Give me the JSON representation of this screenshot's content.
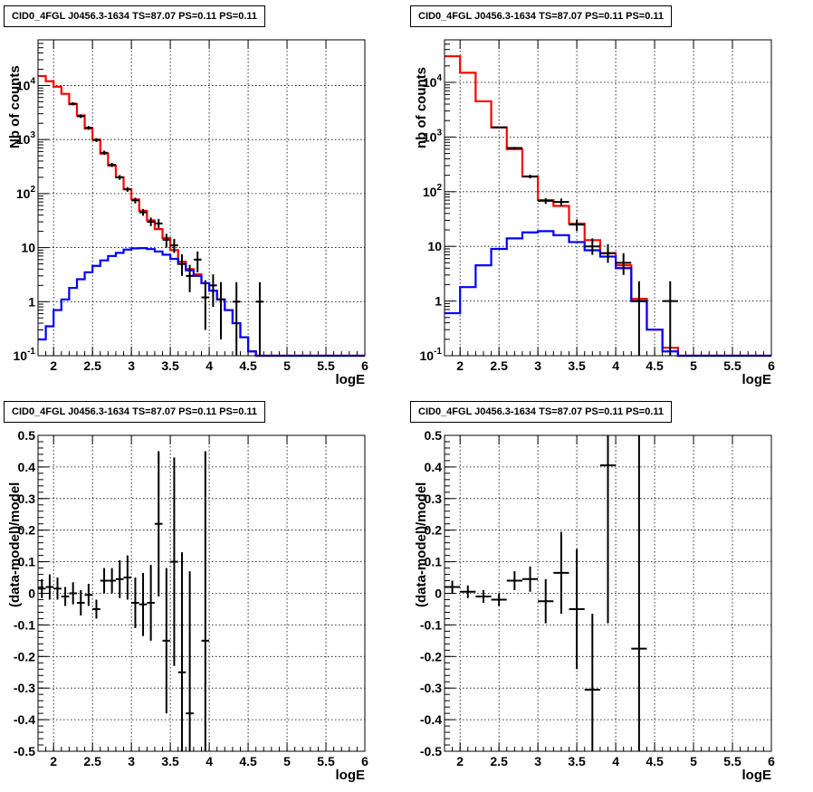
{
  "chart_data": [
    {
      "type": "histogram",
      "title": "CID0_4FGL J0456.3-1634 TS=87.07 PS=0.11 PS=0.11",
      "xlabel": "logE",
      "ylabel": "Nb of counts",
      "xlim": [
        1.8,
        6.0
      ],
      "ylim": [
        0.1,
        70000
      ],
      "yscale": "log",
      "grid": true,
      "x_ticks": [
        "2",
        "2.5",
        "3",
        "3.5",
        "4",
        "4.5",
        "5",
        "5.5",
        "6"
      ],
      "y_ticks": [
        "10^{-1}",
        "1",
        "10",
        "10^{2}",
        "10^{3}",
        "10^{4}"
      ],
      "bin_width": 0.1,
      "series": [
        {
          "style": "step",
          "color": "#ff0000",
          "x": [
            1.85,
            1.95,
            2.05,
            2.15,
            2.25,
            2.35,
            2.45,
            2.55,
            2.65,
            2.75,
            2.85,
            2.95,
            3.05,
            3.15,
            3.25,
            3.35,
            3.45,
            3.55,
            3.65,
            3.75,
            3.85,
            3.95,
            4.05,
            4.15,
            4.25,
            4.35,
            4.45,
            4.55,
            4.65,
            4.75,
            4.85,
            4.95,
            5.05,
            5.15,
            5.25,
            5.35,
            5.45,
            5.55,
            5.65,
            5.75,
            5.85,
            5.95
          ],
          "values": [
            15000,
            12000,
            9500,
            7000,
            4500,
            2800,
            1600,
            1000,
            550,
            330,
            200,
            120,
            78,
            48,
            32,
            22,
            15,
            9,
            5.5,
            4,
            3.2,
            2.2,
            1.6,
            1.1,
            0.7,
            0.4,
            0.22,
            0.12,
            0.1,
            0.1,
            0.1,
            0.1,
            0.1,
            0.1,
            0.1,
            0.1,
            0.1,
            0.1,
            0.1,
            0.1,
            0.1,
            0.1
          ]
        },
        {
          "style": "step",
          "color": "#0000ff",
          "x": [
            1.85,
            1.95,
            2.05,
            2.15,
            2.25,
            2.35,
            2.45,
            2.55,
            2.65,
            2.75,
            2.85,
            2.95,
            3.05,
            3.15,
            3.25,
            3.35,
            3.45,
            3.55,
            3.65,
            3.75,
            3.85,
            3.95,
            4.05,
            4.15,
            4.25,
            4.35,
            4.45,
            4.55,
            4.65,
            4.75,
            4.85,
            4.95,
            5.05,
            5.15,
            5.25,
            5.35,
            5.45,
            5.55,
            5.65,
            5.75,
            5.85,
            5.95
          ],
          "values": [
            0.2,
            0.35,
            0.7,
            1.1,
            1.8,
            2.6,
            3.5,
            4.6,
            5.8,
            7,
            8,
            9.2,
            9.7,
            9.8,
            9.4,
            8.5,
            7.4,
            6.2,
            5,
            3.8,
            3,
            2.2,
            1.6,
            1.1,
            0.7,
            0.4,
            0.22,
            0.12,
            0.1,
            0.1,
            0.1,
            0.1,
            0.1,
            0.1,
            0.1,
            0.1,
            0.1,
            0.1,
            0.1,
            0.1,
            0.1,
            0.1
          ]
        },
        {
          "style": "errorbar",
          "color": "#000000",
          "x": [
            2.25,
            2.35,
            2.45,
            2.55,
            2.65,
            2.75,
            2.85,
            2.95,
            3.05,
            3.15,
            3.25,
            3.35,
            3.45,
            3.55,
            3.65,
            3.75,
            3.85,
            3.95,
            4.05,
            4.15,
            4.35,
            4.65
          ],
          "values": [
            4600,
            2700,
            1650,
            980,
            570,
            340,
            200,
            120,
            75,
            45,
            30,
            28,
            14,
            11,
            5,
            3,
            6,
            1.2,
            2,
            1.1,
            1,
            1
          ],
          "yerr_lo": [
            4300,
            2500,
            1520,
            900,
            520,
            310,
            180,
            108,
            66,
            39,
            25,
            23,
            10,
            8,
            3,
            1.5,
            3.5,
            0.3,
            0.8,
            0.2,
            0.1,
            0.1
          ],
          "yerr_hi": [
            4900,
            2900,
            1780,
            1060,
            620,
            370,
            220,
            132,
            84,
            52,
            36,
            34,
            18,
            14.5,
            7.5,
            4.8,
            8.5,
            2.5,
            3.2,
            2.3,
            2.3,
            2.3
          ]
        }
      ]
    },
    {
      "type": "histogram",
      "title": "CID0_4FGL J0456.3-1634 TS=87.07 PS=0.11 PS=0.11",
      "xlabel": "logE",
      "ylabel": "nb of counts",
      "xlim": [
        1.8,
        6.0
      ],
      "ylim": [
        0.1,
        60000
      ],
      "yscale": "log",
      "grid": true,
      "x_ticks": [
        "2",
        "2.5",
        "3",
        "3.5",
        "4",
        "4.5",
        "5",
        "5.5",
        "6"
      ],
      "y_ticks": [
        "10^{-1}",
        "1",
        "10",
        "10^{2}",
        "10^{3}",
        "10^{4}"
      ],
      "bin_width": 0.2,
      "series": [
        {
          "style": "step",
          "color": "#ff0000",
          "x": [
            1.9,
            2.1,
            2.3,
            2.5,
            2.7,
            2.9,
            3.1,
            3.3,
            3.5,
            3.7,
            3.9,
            4.1,
            4.3,
            4.5,
            4.7,
            4.9,
            5.1,
            5.3,
            5.5,
            5.7,
            5.9
          ],
          "values": [
            30000,
            15000,
            4500,
            1500,
            600,
            190,
            70,
            55,
            26,
            13,
            7.5,
            4.5,
            1.1,
            0.3,
            0.14,
            0.1,
            0.1,
            0.1,
            0.1,
            0.1,
            0.1
          ]
        },
        {
          "style": "step",
          "color": "#0000ff",
          "x": [
            1.9,
            2.1,
            2.3,
            2.5,
            2.7,
            2.9,
            3.1,
            3.3,
            3.5,
            3.7,
            3.9,
            4.1,
            4.3,
            4.5,
            4.7,
            4.9,
            5.1,
            5.3,
            5.5,
            5.7,
            5.9
          ],
          "values": [
            0.6,
            1.8,
            4.5,
            9,
            14,
            18,
            19,
            16,
            12,
            8.5,
            6.5,
            4,
            1,
            0.3,
            0.12,
            0.1,
            0.1,
            0.1,
            0.1,
            0.1,
            0.1
          ]
        },
        {
          "style": "errorbar",
          "color": "#000000",
          "x": [
            2.5,
            2.7,
            2.9,
            3.1,
            3.3,
            3.5,
            3.7,
            3.9,
            4.1,
            4.3,
            4.7
          ],
          "values": [
            1500,
            630,
            190,
            68,
            65,
            25,
            10,
            7.5,
            5,
            1,
            1
          ],
          "yerr_lo": [
            1450,
            600,
            175,
            60,
            55,
            19,
            7,
            5,
            3,
            0.1,
            0.1
          ],
          "yerr_hi": [
            1550,
            660,
            205,
            76,
            75,
            31,
            14,
            11,
            7.5,
            2.3,
            2.3
          ]
        }
      ]
    },
    {
      "type": "scatter",
      "title": "CID0_4FGL J0456.3-1634 TS=87.07 PS=0.11 PS=0.11",
      "xlabel": "logE",
      "ylabel": "(data-model)/model",
      "xlim": [
        1.8,
        6.0
      ],
      "ylim": [
        -0.5,
        0.5
      ],
      "grid": true,
      "x_ticks": [
        "2",
        "2.5",
        "3",
        "3.5",
        "4",
        "4.5",
        "5",
        "5.5",
        "6"
      ],
      "y_ticks": [
        "-0.5",
        "-0.4",
        "-0.3",
        "-0.2",
        "-0.1",
        "0",
        "0.1",
        "0.2",
        "0.3",
        "0.4",
        "0.5"
      ],
      "x_halfwidth": 0.05,
      "x": [
        1.85,
        1.95,
        2.05,
        2.15,
        2.25,
        2.35,
        2.45,
        2.55,
        2.65,
        2.75,
        2.85,
        2.95,
        3.05,
        3.15,
        3.25,
        3.35,
        3.45,
        3.55,
        3.65,
        3.75,
        3.95
      ],
      "values": [
        0.015,
        0.02,
        0.015,
        -0.01,
        0.0,
        -0.03,
        -0.005,
        -0.05,
        0.04,
        0.04,
        0.045,
        0.05,
        -0.03,
        -0.035,
        -0.03,
        0.22,
        -0.15,
        0.1,
        -0.25,
        -0.38,
        -0.15
      ],
      "yerr": [
        0.03,
        0.04,
        0.035,
        0.03,
        0.035,
        0.04,
        0.035,
        0.03,
        0.04,
        0.04,
        0.06,
        0.07,
        0.08,
        0.1,
        0.12,
        0.23,
        0.23,
        0.33,
        0.38,
        0.45,
        0.6
      ]
    },
    {
      "type": "scatter",
      "title": "CID0_4FGL J0456.3-1634 TS=87.07 PS=0.11 PS=0.11",
      "xlabel": "logE",
      "ylabel": "(data-model)/model",
      "xlim": [
        1.8,
        6.0
      ],
      "ylim": [
        -0.5,
        0.5
      ],
      "grid": true,
      "x_ticks": [
        "2",
        "2.5",
        "3",
        "3.5",
        "4",
        "4.5",
        "5",
        "5.5",
        "6"
      ],
      "y_ticks": [
        "-0.5",
        "-0.4",
        "-0.3",
        "-0.2",
        "-0.1",
        "0",
        "0.1",
        "0.2",
        "0.3",
        "0.4",
        "0.5"
      ],
      "x_halfwidth": 0.1,
      "x": [
        1.9,
        2.1,
        2.3,
        2.5,
        2.7,
        2.9,
        3.1,
        3.3,
        3.5,
        3.7,
        3.9,
        4.3
      ],
      "values": [
        0.02,
        0.005,
        -0.01,
        -0.02,
        0.04,
        0.045,
        -0.025,
        0.065,
        -0.05,
        -0.305,
        0.405,
        -0.175
      ],
      "yerr": [
        0.02,
        0.02,
        0.02,
        0.02,
        0.03,
        0.04,
        0.07,
        0.13,
        0.19,
        0.24,
        0.5,
        0.7
      ]
    }
  ]
}
